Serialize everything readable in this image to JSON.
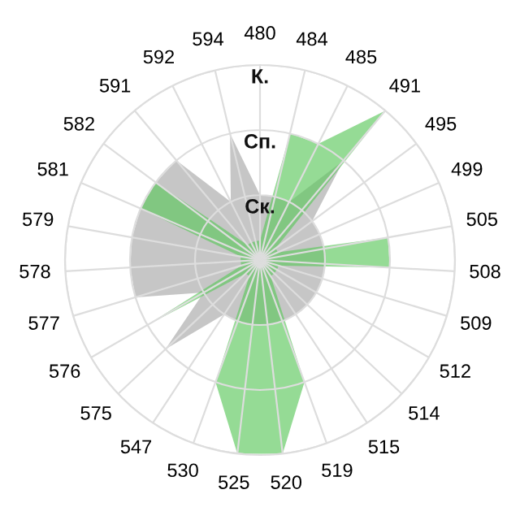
{
  "chart_data": {
    "type": "radar",
    "categories": [
      "480",
      "484",
      "485",
      "491",
      "495",
      "499",
      "505",
      "508",
      "509",
      "512",
      "514",
      "515",
      "519",
      "520",
      "525",
      "530",
      "547",
      "575",
      "576",
      "577",
      "578",
      "579",
      "581",
      "582",
      "591",
      "592",
      "594"
    ],
    "ylim": [
      0,
      3
    ],
    "yticks": [
      {
        "value": 1,
        "label": "Ск."
      },
      {
        "value": 2,
        "label": "Сп."
      },
      {
        "value": 3,
        "label": "К."
      }
    ],
    "grid": true,
    "series": [
      {
        "color": "#a8a8a8",
        "values": [
          1,
          1,
          1,
          2,
          1,
          1,
          1,
          1,
          1,
          1,
          1,
          1,
          1,
          1,
          1,
          1,
          1,
          2,
          1,
          2,
          2,
          2,
          2,
          2,
          2,
          1,
          2
        ]
      },
      {
        "color": "#5cc85c",
        "values": [
          0.3,
          2,
          2,
          3,
          0.3,
          0.3,
          2,
          2,
          0.3,
          0.3,
          0.3,
          0.3,
          2,
          3,
          3,
          2,
          0.3,
          0.3,
          2,
          0.3,
          0.3,
          0.3,
          2,
          2,
          0.3,
          0.3,
          0.3
        ]
      }
    ]
  }
}
